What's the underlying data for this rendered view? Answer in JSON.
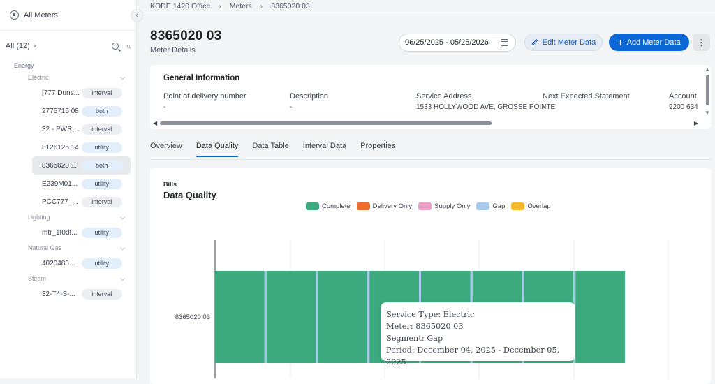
{
  "sidebar": {
    "header": "All Meters",
    "filter_label": "All (12)",
    "groups": [
      {
        "label": "Energy",
        "subgroups": [
          {
            "label": "Electric",
            "items": [
              {
                "name": "[777 Duns...",
                "type": "interval"
              },
              {
                "name": "2775715 08",
                "type": "both"
              },
              {
                "name": "32 - PWR ...",
                "type": "interval"
              },
              {
                "name": "8126125 14",
                "type": "utility"
              },
              {
                "name": "8365020 ...",
                "type": "both",
                "active": true
              },
              {
                "name": "E239M01...",
                "type": "utility"
              },
              {
                "name": "PCC777_...",
                "type": "interval"
              }
            ]
          },
          {
            "label": "Lighting",
            "items": [
              {
                "name": "mtr_1f0df...",
                "type": "utility"
              }
            ]
          },
          {
            "label": "Natural Gas",
            "items": [
              {
                "name": "4020483...",
                "type": "utility"
              }
            ]
          },
          {
            "label": "Steam",
            "items": [
              {
                "name": "32-T4-S-...",
                "type": "interval"
              }
            ]
          }
        ]
      }
    ]
  },
  "breadcrumb": [
    "KODE 1420 Office",
    "Meters",
    "8365020 03"
  ],
  "page": {
    "title": "8365020 03",
    "subtitle": "Meter Details",
    "date_range": "06/25/2025 - 05/25/2026",
    "edit_label": "Edit Meter Data",
    "add_label": "Add Meter Data",
    "more_label": "⋮"
  },
  "general_info": {
    "title": "General Information",
    "fields": [
      {
        "label": "Point of delivery number",
        "value": "-"
      },
      {
        "label": "Description",
        "value": "-"
      },
      {
        "label": "Service Address",
        "value": "1533 HOLLYWOOD AVE, GROSSE POINTE"
      },
      {
        "label": "Next Expected Statement",
        "value": "-"
      },
      {
        "label": "Account",
        "value": "9200 634"
      }
    ]
  },
  "tabs": [
    "Overview",
    "Data Quality",
    "Data Table",
    "Interval Data",
    "Properties"
  ],
  "active_tab": "Data Quality",
  "chart_card": {
    "kicker": "Bills",
    "title": "Data Quality"
  },
  "legend": [
    {
      "label": "Complete",
      "color": "#3caa7e"
    },
    {
      "label": "Delivery Only",
      "color": "#f26a2e"
    },
    {
      "label": "Supply Only",
      "color": "#ec9fc6"
    },
    {
      "label": "Gap",
      "color": "#a7c9ee"
    },
    {
      "label": "Overlap",
      "color": "#f5b82a"
    }
  ],
  "tooltip": [
    "Service Type: Electric",
    "Meter: 8365020 03",
    "Segment: Gap",
    "Period: December 04, 2025 - December 05, 2025"
  ],
  "chart_data": {
    "type": "bar",
    "orientation": "horizontal-timeline",
    "categories": [
      "8365020 03"
    ],
    "series": [
      {
        "name": "Complete",
        "color": "#3caa7e",
        "segments": 8
      },
      {
        "name": "Gap",
        "color": "#a7c9ee",
        "segments": 7
      }
    ],
    "grid": true
  }
}
